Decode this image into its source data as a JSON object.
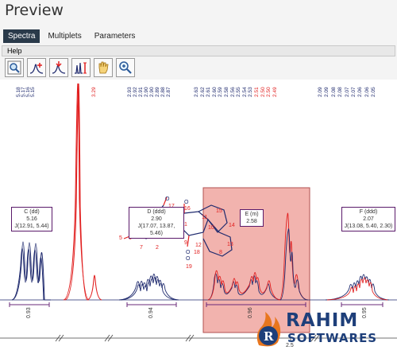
{
  "window": {
    "title": "Preview"
  },
  "tabs": [
    {
      "label": "Spectra",
      "active": true
    },
    {
      "label": "Multiplets",
      "active": false
    },
    {
      "label": "Parameters",
      "active": false
    }
  ],
  "menu": {
    "help": "Help"
  },
  "toolbar": {
    "icons": [
      "zoom-fit-icon",
      "peak-pick-icon",
      "peak-delete-icon",
      "integrate-icon",
      "pan-hand-icon",
      "zoom-in-icon"
    ]
  },
  "spectrum": {
    "shift_labels_left": [
      "5.18",
      "5.17",
      "5.16",
      "5.15"
    ],
    "shift_labels_red": [
      "3.29"
    ],
    "shift_labels_mid": [
      "2.93",
      "2.92",
      "2.91",
      "2.90",
      "2.90",
      "2.89",
      "2.88",
      "2.87"
    ],
    "shift_labels_right": [
      "2.63",
      "2.62",
      "2.61",
      "2.60",
      "2.59",
      "2.58",
      "2.56",
      "2.55",
      "2.54",
      "2.53",
      "2.51",
      "2.50",
      "2.50",
      "2.49"
    ],
    "shift_labels_far": [
      "2.09",
      "2.09",
      "2.08",
      "2.08",
      "2.07",
      "2.07",
      "2.06",
      "2.06",
      "2.05"
    ],
    "multiplets": [
      {
        "id": "C",
        "kind": "C (dd)",
        "shift": "5.16",
        "j": "J(12.91, 5.44)"
      },
      {
        "id": "D",
        "kind": "D (ddd)",
        "shift": "2.90",
        "j": "J(17.07, 13.87, 5.46)"
      },
      {
        "id": "E",
        "kind": "E (m)",
        "shift": "2.58",
        "j": ""
      },
      {
        "id": "F",
        "kind": "F (ddd)",
        "shift": "2.07",
        "j": "J(13.08, 5.40, 2.30)"
      }
    ],
    "integrals": [
      "0.93",
      "0.94",
      "0.96",
      "0.95"
    ],
    "axis_tick": "2.5",
    "atoms": [
      "O",
      "17",
      "N",
      "4",
      "3",
      "1",
      "11",
      "10",
      "15",
      "14",
      "O",
      "16",
      "5",
      "6",
      "7",
      "2",
      "9",
      "12",
      "13",
      "8",
      "O",
      "18",
      "O",
      "19"
    ],
    "colors": {
      "blue": "#1f2a6e",
      "red": "#e11f1f",
      "highlight": "#f2b3ae",
      "frame": "#5a1a6a"
    }
  },
  "watermark": {
    "line1": "RAHIM",
    "line2": "SOFTWARES"
  }
}
